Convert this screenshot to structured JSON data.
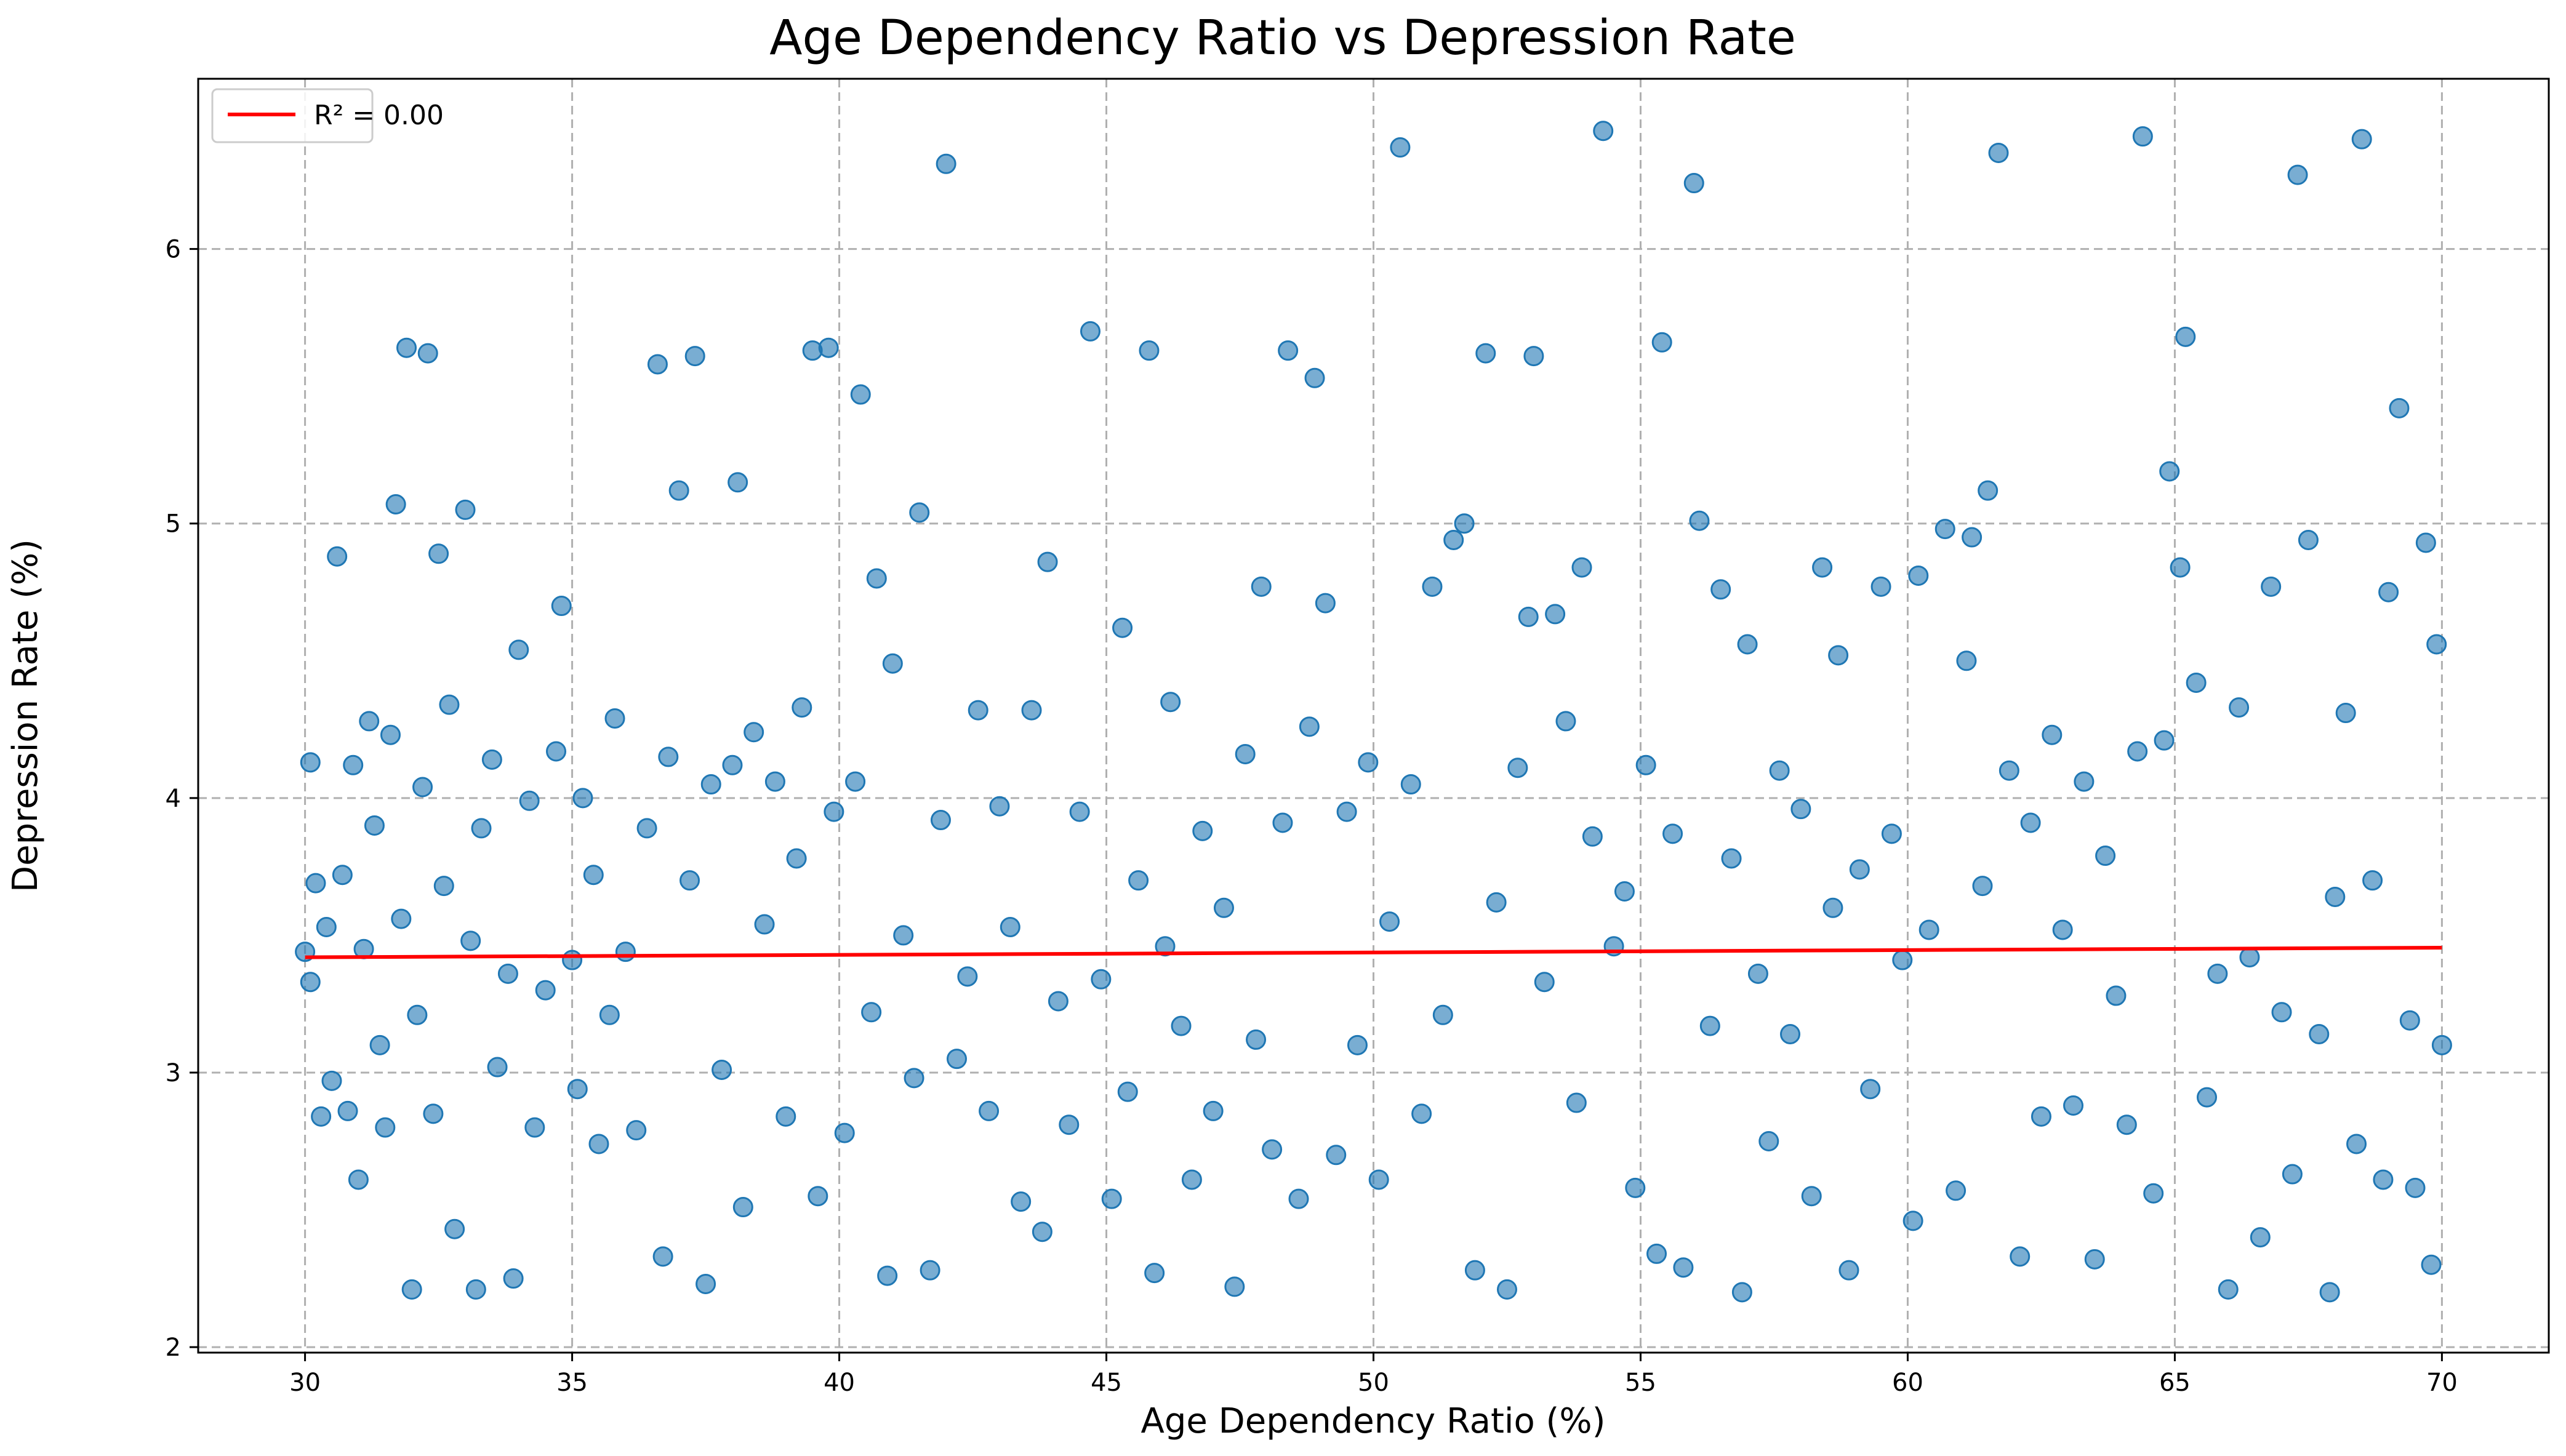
{
  "chart_data": {
    "type": "scatter",
    "title": "Age Dependency Ratio vs Depression Rate",
    "xlabel": "Age Dependency Ratio (%)",
    "ylabel": "Depression Rate (%)",
    "xlim": [
      28.0,
      72.0
    ],
    "ylim": [
      1.98,
      6.62
    ],
    "xticks": [
      30,
      35,
      40,
      45,
      50,
      55,
      60,
      65,
      70
    ],
    "yticks": [
      2,
      3,
      4,
      5,
      6
    ],
    "grid": true,
    "legend": {
      "placement": "top-left",
      "entries": [
        {
          "label": "R² = 0.00",
          "color": "#ff0000"
        }
      ]
    },
    "series": [
      {
        "kind": "scatter",
        "color": "#1f77b4",
        "points": [
          [
            30.0,
            3.44
          ],
          [
            30.1,
            4.13
          ],
          [
            30.1,
            3.33
          ],
          [
            30.2,
            3.69
          ],
          [
            30.3,
            2.84
          ],
          [
            30.4,
            3.53
          ],
          [
            30.5,
            2.97
          ],
          [
            30.6,
            4.88
          ],
          [
            30.7,
            3.72
          ],
          [
            30.8,
            2.86
          ],
          [
            30.9,
            4.12
          ],
          [
            31.0,
            2.61
          ],
          [
            31.1,
            3.45
          ],
          [
            31.2,
            4.28
          ],
          [
            31.3,
            3.9
          ],
          [
            31.4,
            3.1
          ],
          [
            31.5,
            2.8
          ],
          [
            31.6,
            4.23
          ],
          [
            31.7,
            5.07
          ],
          [
            31.8,
            3.56
          ],
          [
            31.9,
            5.64
          ],
          [
            32.0,
            2.21
          ],
          [
            32.1,
            3.21
          ],
          [
            32.2,
            4.04
          ],
          [
            32.3,
            5.62
          ],
          [
            32.4,
            2.85
          ],
          [
            32.5,
            4.89
          ],
          [
            32.6,
            3.68
          ],
          [
            32.7,
            4.34
          ],
          [
            32.8,
            2.43
          ],
          [
            33.0,
            5.05
          ],
          [
            33.1,
            3.48
          ],
          [
            33.2,
            2.21
          ],
          [
            33.3,
            3.89
          ],
          [
            33.5,
            4.14
          ],
          [
            33.6,
            3.02
          ],
          [
            33.8,
            3.36
          ],
          [
            33.9,
            2.25
          ],
          [
            34.0,
            4.54
          ],
          [
            34.2,
            3.99
          ],
          [
            34.3,
            2.8
          ],
          [
            34.5,
            3.3
          ],
          [
            34.7,
            4.17
          ],
          [
            34.8,
            4.7
          ],
          [
            35.0,
            3.41
          ],
          [
            35.1,
            2.94
          ],
          [
            35.2,
            4.0
          ],
          [
            35.4,
            3.72
          ],
          [
            35.5,
            2.74
          ],
          [
            35.7,
            3.21
          ],
          [
            35.8,
            4.29
          ],
          [
            36.0,
            3.44
          ],
          [
            36.2,
            2.79
          ],
          [
            36.4,
            3.89
          ],
          [
            36.6,
            5.58
          ],
          [
            36.7,
            2.33
          ],
          [
            36.8,
            4.15
          ],
          [
            37.0,
            5.12
          ],
          [
            37.2,
            3.7
          ],
          [
            37.3,
            5.61
          ],
          [
            37.5,
            2.23
          ],
          [
            37.6,
            4.05
          ],
          [
            37.8,
            3.01
          ],
          [
            38.0,
            4.12
          ],
          [
            38.1,
            5.15
          ],
          [
            38.2,
            2.51
          ],
          [
            38.4,
            4.24
          ],
          [
            38.6,
            3.54
          ],
          [
            38.8,
            4.06
          ],
          [
            39.0,
            2.84
          ],
          [
            39.2,
            3.78
          ],
          [
            39.3,
            4.33
          ],
          [
            39.5,
            5.63
          ],
          [
            39.6,
            2.55
          ],
          [
            39.8,
            5.64
          ],
          [
            39.9,
            3.95
          ],
          [
            40.1,
            2.78
          ],
          [
            40.3,
            4.06
          ],
          [
            40.4,
            5.47
          ],
          [
            40.6,
            3.22
          ],
          [
            40.7,
            4.8
          ],
          [
            40.9,
            2.26
          ],
          [
            41.0,
            4.49
          ],
          [
            41.2,
            3.5
          ],
          [
            41.4,
            2.98
          ],
          [
            41.5,
            5.04
          ],
          [
            41.7,
            2.28
          ],
          [
            41.9,
            3.92
          ],
          [
            42.0,
            6.31
          ],
          [
            42.2,
            3.05
          ],
          [
            42.4,
            3.35
          ],
          [
            42.6,
            4.32
          ],
          [
            42.8,
            2.86
          ],
          [
            43.0,
            3.97
          ],
          [
            43.2,
            3.53
          ],
          [
            43.4,
            2.53
          ],
          [
            43.6,
            4.32
          ],
          [
            43.8,
            2.42
          ],
          [
            43.9,
            4.86
          ],
          [
            44.1,
            3.26
          ],
          [
            44.3,
            2.81
          ],
          [
            44.5,
            3.95
          ],
          [
            44.7,
            5.7
          ],
          [
            44.9,
            3.34
          ],
          [
            45.1,
            2.54
          ],
          [
            45.3,
            4.62
          ],
          [
            45.4,
            2.93
          ],
          [
            45.6,
            3.7
          ],
          [
            45.8,
            5.63
          ],
          [
            45.9,
            2.27
          ],
          [
            46.1,
            3.46
          ],
          [
            46.2,
            4.35
          ],
          [
            46.4,
            3.17
          ],
          [
            46.6,
            2.61
          ],
          [
            46.8,
            3.88
          ],
          [
            47.0,
            2.86
          ],
          [
            47.2,
            3.6
          ],
          [
            47.4,
            2.22
          ],
          [
            47.6,
            4.16
          ],
          [
            47.8,
            3.12
          ],
          [
            47.9,
            4.77
          ],
          [
            48.1,
            2.72
          ],
          [
            48.3,
            3.91
          ],
          [
            48.4,
            5.63
          ],
          [
            48.6,
            2.54
          ],
          [
            48.8,
            4.26
          ],
          [
            48.9,
            5.53
          ],
          [
            49.1,
            4.71
          ],
          [
            49.3,
            2.7
          ],
          [
            49.5,
            3.95
          ],
          [
            49.7,
            3.1
          ],
          [
            49.9,
            4.13
          ],
          [
            50.1,
            2.61
          ],
          [
            50.3,
            3.55
          ],
          [
            50.5,
            6.37
          ],
          [
            50.7,
            4.05
          ],
          [
            50.9,
            2.85
          ],
          [
            51.1,
            4.77
          ],
          [
            51.3,
            3.21
          ],
          [
            51.5,
            4.94
          ],
          [
            51.7,
            5.0
          ],
          [
            51.9,
            2.28
          ],
          [
            52.1,
            5.62
          ],
          [
            52.3,
            3.62
          ],
          [
            52.5,
            2.21
          ],
          [
            52.7,
            4.11
          ],
          [
            52.9,
            4.66
          ],
          [
            53.0,
            5.61
          ],
          [
            53.2,
            3.33
          ],
          [
            53.4,
            4.67
          ],
          [
            53.6,
            4.28
          ],
          [
            53.8,
            2.89
          ],
          [
            53.9,
            4.84
          ],
          [
            54.1,
            3.86
          ],
          [
            54.3,
            6.43
          ],
          [
            54.5,
            3.46
          ],
          [
            54.7,
            3.66
          ],
          [
            54.9,
            2.58
          ],
          [
            55.1,
            4.12
          ],
          [
            55.3,
            2.34
          ],
          [
            55.4,
            5.66
          ],
          [
            55.6,
            3.87
          ],
          [
            55.8,
            2.29
          ],
          [
            56.0,
            6.24
          ],
          [
            56.1,
            5.01
          ],
          [
            56.3,
            3.17
          ],
          [
            56.5,
            4.76
          ],
          [
            56.7,
            3.78
          ],
          [
            56.9,
            2.2
          ],
          [
            57.0,
            4.56
          ],
          [
            57.2,
            3.36
          ],
          [
            57.4,
            2.75
          ],
          [
            57.6,
            4.1
          ],
          [
            57.8,
            3.14
          ],
          [
            58.0,
            3.96
          ],
          [
            58.2,
            2.55
          ],
          [
            58.4,
            4.84
          ],
          [
            58.6,
            3.6
          ],
          [
            58.7,
            4.52
          ],
          [
            58.9,
            2.28
          ],
          [
            59.1,
            3.74
          ],
          [
            59.3,
            2.94
          ],
          [
            59.5,
            4.77
          ],
          [
            59.7,
            3.87
          ],
          [
            59.9,
            3.41
          ],
          [
            60.1,
            2.46
          ],
          [
            60.2,
            4.81
          ],
          [
            60.4,
            3.52
          ],
          [
            60.7,
            4.98
          ],
          [
            60.9,
            2.57
          ],
          [
            61.1,
            4.5
          ],
          [
            61.2,
            4.95
          ],
          [
            61.4,
            3.68
          ],
          [
            61.5,
            5.12
          ],
          [
            61.7,
            6.35
          ],
          [
            61.9,
            4.1
          ],
          [
            62.1,
            2.33
          ],
          [
            62.3,
            3.91
          ],
          [
            62.5,
            2.84
          ],
          [
            62.7,
            4.23
          ],
          [
            62.9,
            3.52
          ],
          [
            63.1,
            2.88
          ],
          [
            63.3,
            4.06
          ],
          [
            63.5,
            2.32
          ],
          [
            63.7,
            3.79
          ],
          [
            63.9,
            3.28
          ],
          [
            64.1,
            2.81
          ],
          [
            64.3,
            4.17
          ],
          [
            64.4,
            6.41
          ],
          [
            64.6,
            2.56
          ],
          [
            64.8,
            4.21
          ],
          [
            64.9,
            5.19
          ],
          [
            65.1,
            4.84
          ],
          [
            65.2,
            5.68
          ],
          [
            65.4,
            4.42
          ],
          [
            65.6,
            2.91
          ],
          [
            65.8,
            3.36
          ],
          [
            66.0,
            2.21
          ],
          [
            66.2,
            4.33
          ],
          [
            66.4,
            3.42
          ],
          [
            66.6,
            2.4
          ],
          [
            66.8,
            4.77
          ],
          [
            67.0,
            3.22
          ],
          [
            67.2,
            2.63
          ],
          [
            67.3,
            6.27
          ],
          [
            67.5,
            4.94
          ],
          [
            67.7,
            3.14
          ],
          [
            67.9,
            2.2
          ],
          [
            68.0,
            3.64
          ],
          [
            68.2,
            4.31
          ],
          [
            68.4,
            2.74
          ],
          [
            68.5,
            6.4
          ],
          [
            68.7,
            3.7
          ],
          [
            68.9,
            2.61
          ],
          [
            69.0,
            4.75
          ],
          [
            69.2,
            5.42
          ],
          [
            69.4,
            3.19
          ],
          [
            69.5,
            2.58
          ],
          [
            69.7,
            4.93
          ],
          [
            69.8,
            2.3
          ],
          [
            69.9,
            4.56
          ],
          [
            70.0,
            3.1
          ]
        ]
      },
      {
        "kind": "line",
        "name": "R² = 0.00",
        "color": "#ff0000",
        "x": [
          30.0,
          70.0
        ],
        "y": [
          3.42,
          3.455
        ]
      }
    ]
  }
}
